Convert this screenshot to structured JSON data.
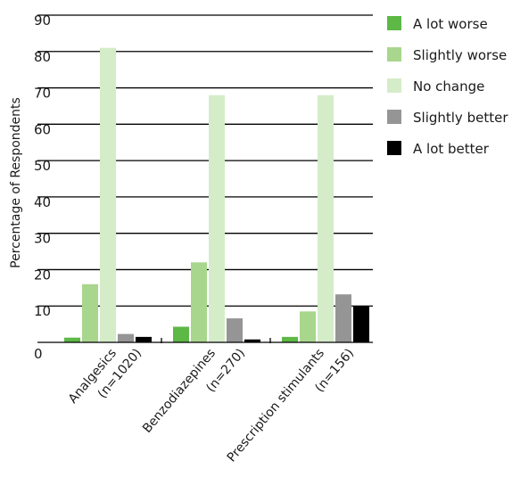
{
  "chart_data": {
    "type": "bar",
    "ylabel": "Percentage of Respondents",
    "xlabel": "",
    "ylim": [
      0,
      90
    ],
    "yticks": [
      0,
      10,
      20,
      30,
      40,
      50,
      60,
      70,
      80,
      90
    ],
    "categories": [
      {
        "lines": [
          "Analgesics",
          "(n=1020)"
        ]
      },
      {
        "lines": [
          "Benzodiazepines",
          "(n=270)"
        ]
      },
      {
        "lines": [
          "Prescription stimulants",
          "(n=156)"
        ]
      }
    ],
    "series": [
      {
        "name": "A lot worse",
        "color": "#5db845",
        "values": [
          1.3,
          4.3,
          1.5
        ]
      },
      {
        "name": "Slightly worse",
        "color": "#a8d68c",
        "values": [
          16,
          22,
          8.5
        ]
      },
      {
        "name": "No change",
        "color": "#d4ecc8",
        "values": [
          81,
          68,
          68
        ]
      },
      {
        "name": "Slightly better",
        "color": "#959595",
        "values": [
          2.3,
          6.6,
          13.2
        ]
      },
      {
        "name": "A lot better",
        "color": "#000000",
        "values": [
          1.5,
          0.8,
          10
        ]
      }
    ],
    "grid": true,
    "legend_position": "right"
  }
}
